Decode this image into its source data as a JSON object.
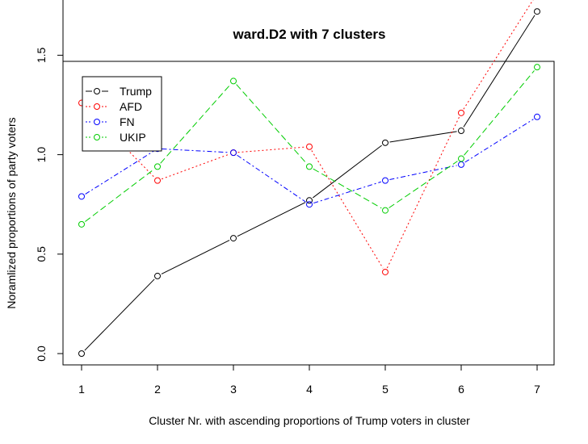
{
  "chart_data": {
    "type": "line",
    "title": "ward.D2 with 7 clusters",
    "xlabel": "Cluster Nr. with ascending proportions of Trump voters in cluster",
    "ylabel": "Noramlized proportions of party voters",
    "x": [
      1,
      2,
      3,
      4,
      5,
      6,
      7
    ],
    "xlim": [
      1,
      7
    ],
    "ylim": [
      0.0,
      2.5
    ],
    "x_ticks": [
      "1",
      "2",
      "3",
      "4",
      "5",
      "6",
      "7"
    ],
    "y_ticks": [
      "0.0",
      "0.5",
      "1.0",
      "1.5",
      "2.0",
      "2.5"
    ],
    "legend_position": "top-left",
    "grid": false,
    "series": [
      {
        "name": "Trump",
        "color": "#000000",
        "dash": "solid",
        "values": [
          0.0,
          0.39,
          0.58,
          0.77,
          1.06,
          1.12,
          1.72
        ]
      },
      {
        "name": "AFD",
        "color": "#ff0000",
        "dash": "dotted",
        "values": [
          1.26,
          0.87,
          1.01,
          1.04,
          0.41,
          1.21,
          1.81
        ]
      },
      {
        "name": "FN",
        "color": "#0000ff",
        "dash": "dashdot",
        "values": [
          0.79,
          1.03,
          1.01,
          0.75,
          0.87,
          0.95,
          1.19
        ]
      },
      {
        "name": "UKIP",
        "color": "#00cd00",
        "dash": "longdash",
        "values": [
          0.65,
          0.94,
          1.37,
          0.94,
          0.72,
          0.98,
          1.44
        ]
      }
    ]
  }
}
